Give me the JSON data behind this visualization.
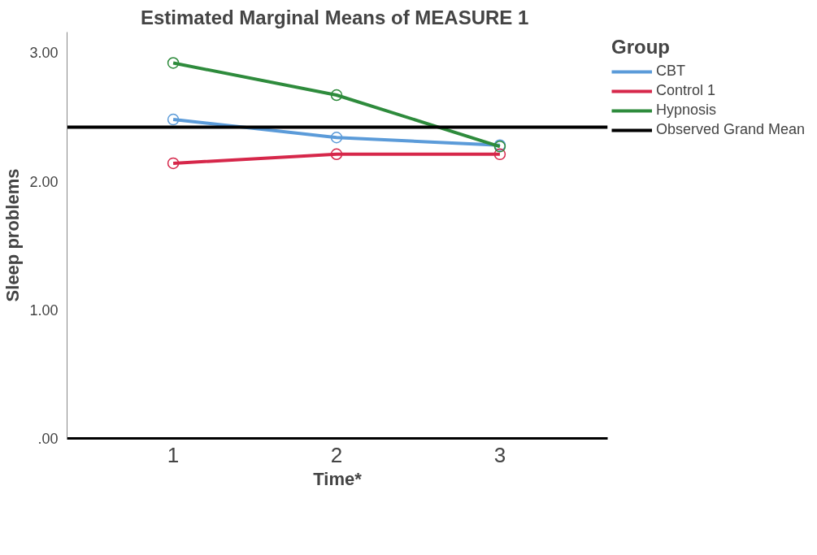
{
  "chart_data": {
    "type": "line",
    "title": "Estimated Marginal Means of MEASURE  1",
    "xlabel": "Time*",
    "ylabel": "Sleep problems",
    "legend_title": "Group",
    "categories": [
      "1",
      "2",
      "3"
    ],
    "series": [
      {
        "name": "CBT",
        "color": "#5b9bd9",
        "values": [
          2.48,
          2.34,
          2.28
        ]
      },
      {
        "name": "Control 1",
        "color": "#d6274a",
        "values": [
          2.14,
          2.21,
          2.21
        ]
      },
      {
        "name": "Hypnosis",
        "color": "#2e8b3c",
        "values": [
          2.92,
          2.67,
          2.27
        ]
      }
    ],
    "ref_lines": [
      {
        "axis": "y",
        "value": 2.42,
        "label": "Observed Grand Mean",
        "color": "#000000"
      }
    ],
    "ylim": [
      0,
      3.16
    ],
    "yticks": [
      {
        "value": 0,
        "label": ".00"
      },
      {
        "value": 1,
        "label": "1.00"
      },
      {
        "value": 2,
        "label": "2.00"
      },
      {
        "value": 3,
        "label": "3.00"
      }
    ],
    "marker": "circle",
    "line_style": "solid",
    "grid": false,
    "legend": "right"
  }
}
